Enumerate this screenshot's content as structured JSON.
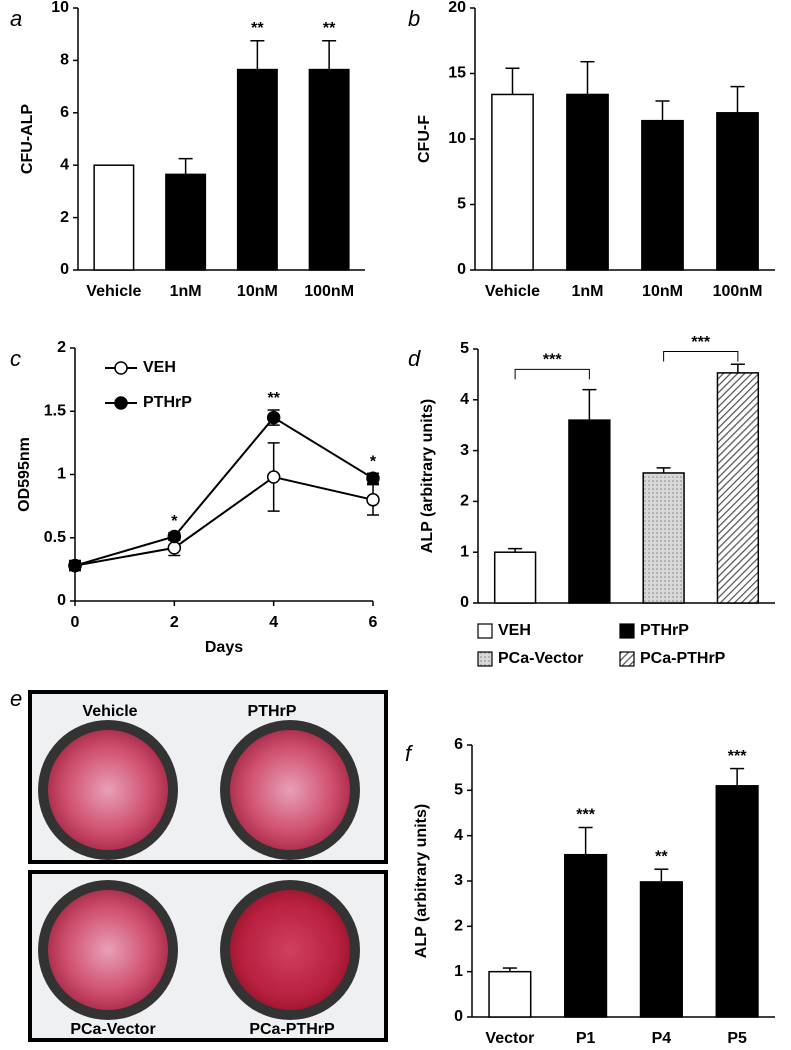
{
  "chart_data": [
    {
      "type": "bar",
      "letter": "a",
      "ylabel": "CFU-ALP",
      "categories": [
        "Vehicle",
        "1nM",
        "10nM",
        "100nM"
      ],
      "values": [
        4.0,
        3.65,
        7.65,
        7.65
      ],
      "errors": [
        0,
        0.6,
        1.1,
        1.1
      ],
      "colors": [
        "#ffffff",
        "#000000",
        "#000000",
        "#000000"
      ],
      "significance": [
        null,
        null,
        "**",
        "**"
      ],
      "ylim": [
        0,
        10
      ],
      "yticks": [
        0,
        2,
        4,
        6,
        8,
        10
      ]
    },
    {
      "type": "bar",
      "letter": "b",
      "ylabel": "CFU-F",
      "categories": [
        "Vehicle",
        "1nM",
        "10nM",
        "100nM"
      ],
      "values": [
        13.4,
        13.4,
        11.4,
        12.0
      ],
      "errors": [
        2.0,
        2.5,
        1.5,
        2.0
      ],
      "colors": [
        "#ffffff",
        "#000000",
        "#000000",
        "#000000"
      ],
      "ylim": [
        0,
        20
      ],
      "yticks": [
        0,
        5,
        10,
        15,
        20
      ]
    },
    {
      "type": "line",
      "letter": "c",
      "xlabel": "Days",
      "ylabel": "OD595nm",
      "x": [
        0,
        2,
        4,
        6
      ],
      "series": [
        {
          "name": "VEH",
          "color": "#ffffff",
          "values": [
            0.28,
            0.42,
            0.98,
            0.8
          ],
          "errors": [
            0.04,
            0.06,
            0.27,
            0.12
          ]
        },
        {
          "name": "PTHrP",
          "color": "#000000",
          "values": [
            0.28,
            0.51,
            1.45,
            0.97
          ],
          "errors": [
            0.03,
            0.03,
            0.06,
            0.04
          ]
        }
      ],
      "significance": [
        null,
        "*",
        "**",
        "*"
      ],
      "legend": "upper left",
      "xlim": [
        0,
        6
      ],
      "xticks": [
        0,
        2,
        4,
        6
      ],
      "ylim": [
        0,
        2
      ],
      "yticks": [
        0,
        0.5,
        1,
        1.5,
        2
      ]
    },
    {
      "type": "bar",
      "letter": "d",
      "ylabel": "ALP (arbitrary units)",
      "categories": [
        "VEH",
        "PTHrP",
        "PCa-Vector",
        "PCa-PTHrP"
      ],
      "values": [
        1.0,
        3.6,
        2.56,
        4.53
      ],
      "errors": [
        0.07,
        0.6,
        0.1,
        0.17
      ],
      "colors": [
        "#ffffff",
        "#000000",
        "#d8d8d8",
        "#ffffff"
      ],
      "patterns": [
        null,
        null,
        "dotted",
        "hatched"
      ],
      "legend": "bottom",
      "brackets": [
        {
          "from": 0,
          "to": 1,
          "height": 4.6,
          "label": "***"
        },
        {
          "from": 2,
          "to": 3,
          "height": 4.95,
          "label": "***"
        }
      ],
      "ylim": [
        0,
        5
      ],
      "yticks": [
        0,
        1,
        2,
        3,
        4,
        5
      ]
    },
    {
      "type": "bar",
      "letter": "f",
      "ylabel": "ALP (arbitrary units)",
      "categories": [
        "Vector",
        "P1",
        "P4",
        "P5"
      ],
      "values": [
        1.0,
        3.58,
        2.98,
        5.1
      ],
      "errors": [
        0.08,
        0.6,
        0.28,
        0.38
      ],
      "colors": [
        "#ffffff",
        "#000000",
        "#000000",
        "#000000"
      ],
      "significance": [
        null,
        "***",
        "**",
        "***"
      ],
      "ylim": [
        0,
        6
      ],
      "yticks": [
        0,
        1,
        2,
        3,
        4,
        5,
        6
      ]
    }
  ],
  "image_panel": {
    "letter": "e",
    "labels": [
      "Vehicle",
      "PTHrP",
      "PCa-Vector",
      "PCa-PTHrP"
    ]
  }
}
